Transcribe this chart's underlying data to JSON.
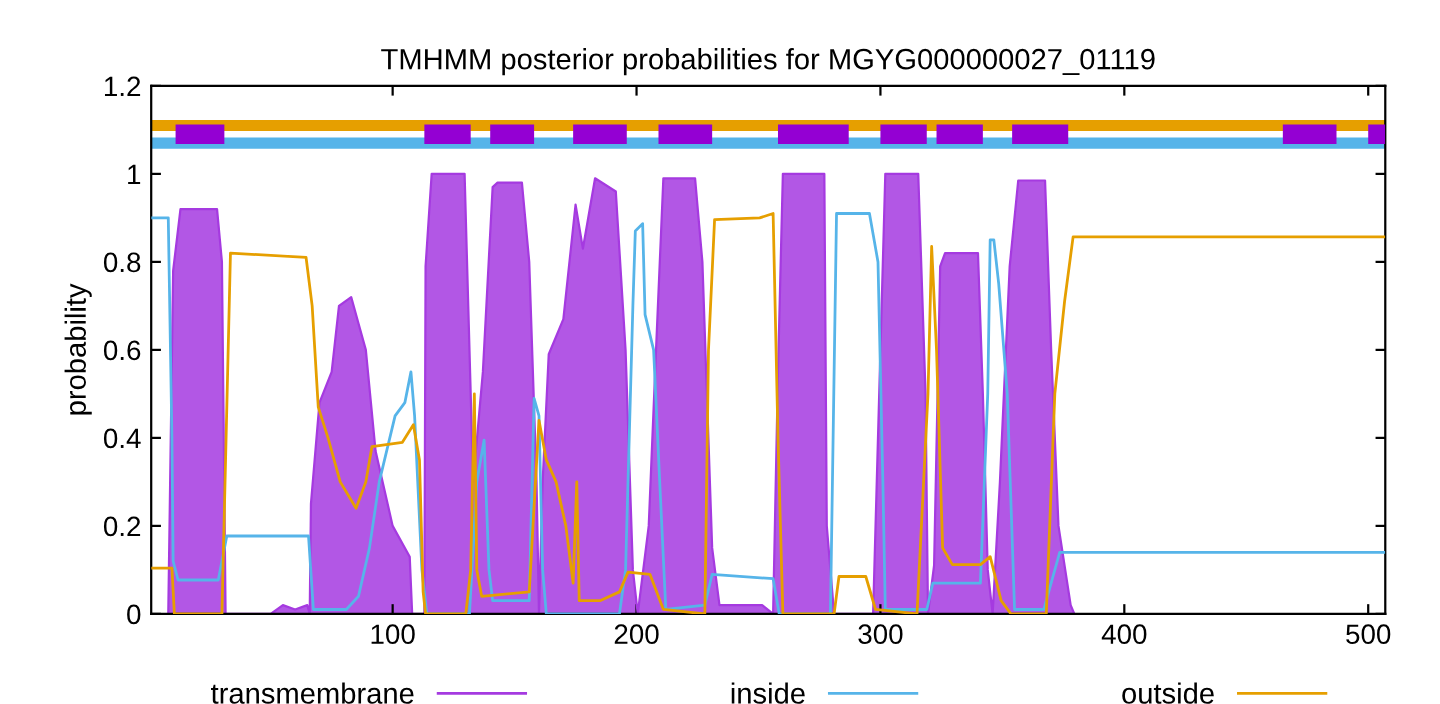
{
  "chart_data": {
    "type": "area",
    "title": "TMHMM posterior probabilities for MGYG000000027_01119",
    "ylabel": "probability",
    "xlim": [
      1,
      507
    ],
    "xticks": [
      100,
      200,
      300,
      400,
      500
    ],
    "ylim": [
      0,
      1.2
    ],
    "yticks": [
      0,
      0.2,
      0.4,
      0.6,
      0.8,
      1,
      1.2
    ],
    "grid": false,
    "legend": "bottom",
    "ref_lines": [
      {
        "axis": "y",
        "value": 1.11,
        "label": null,
        "color": "#e69f00"
      },
      {
        "axis": "y",
        "value": 1.07,
        "label": null,
        "color": "#56b4e9"
      }
    ],
    "series": [
      {
        "name": "transmembrane",
        "color": "#a53ae0",
        "x": [
          8,
          10,
          13,
          28,
          30,
          31.5,
          50,
          55,
          60,
          65,
          66,
          66.5,
          70,
          75,
          78,
          83,
          86,
          89,
          93,
          100,
          107,
          108,
          113,
          113.5,
          116,
          129.5,
          132,
          133,
          137,
          141,
          143,
          153,
          156,
          159,
          160,
          161.5,
          164,
          170,
          175,
          178,
          183,
          191.5,
          195.5,
          198.5,
          200.5,
          205,
          208,
          211,
          224,
          227,
          231,
          234,
          251.5,
          256,
          258,
          260,
          277,
          278,
          281,
          297,
          297.5,
          300,
          302,
          315.5,
          318.5,
          319.5,
          322,
          324.5,
          326.5,
          340,
          342,
          344,
          346,
          349,
          353,
          356.5,
          367.5,
          370,
          373,
          378,
          379.5
        ],
        "values": [
          0,
          0.78,
          0.92,
          0.92,
          0.8,
          0,
          0,
          0.02,
          0.01,
          0.02,
          0,
          0.25,
          0.48,
          0.55,
          0.7,
          0.72,
          0.66,
          0.6,
          0.37,
          0.2,
          0.13,
          0,
          0,
          0.79,
          1,
          1,
          0.5,
          0.3,
          0.55,
          0.97,
          0.98,
          0.98,
          0.8,
          0.3,
          0,
          0.3,
          0.59,
          0.67,
          0.93,
          0.83,
          0.99,
          0.96,
          0.6,
          0.1,
          0,
          0.2,
          0.6,
          0.99,
          0.99,
          0.8,
          0.15,
          0.02,
          0.02,
          0,
          0.55,
          1,
          1,
          0.2,
          0,
          0,
          0.1,
          0.6,
          1,
          1,
          0.5,
          0,
          0.11,
          0.79,
          0.82,
          0.82,
          0.5,
          0.1,
          0,
          0.3,
          0.79,
          0.985,
          0.985,
          0.6,
          0.2,
          0.02,
          0
        ]
      },
      {
        "name": "inside",
        "type": "line",
        "color": "#56b4e9",
        "x": [
          1,
          8,
          9.5,
          10,
          12,
          28.5,
          32,
          65.5,
          67.5,
          81,
          86,
          90.5,
          94.5,
          101,
          105,
          107.5,
          109,
          112,
          114,
          131.5,
          134.5,
          137.5,
          139.5,
          141,
          156,
          158,
          160,
          161.5,
          163,
          193,
          195.5,
          198.5,
          199.5,
          202.5,
          203.5,
          207,
          209.5,
          212,
          228,
          231,
          256,
          258.5,
          279.5,
          282,
          295.5,
          299,
          301,
          302,
          319,
          321.5,
          341,
          344,
          345,
          346.5,
          348.5,
          352,
          355,
          367,
          373.5,
          507
        ],
        "values": [
          0.9,
          0.9,
          0.4,
          0.12,
          0.077,
          0.077,
          0.177,
          0.177,
          0.01,
          0.01,
          0.04,
          0.15,
          0.3,
          0.45,
          0.48,
          0.55,
          0.45,
          0.1,
          0,
          0,
          0.3,
          0.395,
          0.1,
          0.03,
          0.03,
          0.49,
          0.45,
          0.1,
          0,
          0,
          0.1,
          0.7,
          0.87,
          0.887,
          0.68,
          0.6,
          0.3,
          0.01,
          0.02,
          0.09,
          0.08,
          0,
          0,
          0.91,
          0.91,
          0.8,
          0.3,
          0.01,
          0.01,
          0.07,
          0.07,
          0.5,
          0.85,
          0.85,
          0.75,
          0.5,
          0.01,
          0.01,
          0.14,
          0.14
        ]
      },
      {
        "name": "outside",
        "type": "line",
        "color": "#e69f00",
        "x": [
          1,
          9.5,
          10.5,
          30,
          33.5,
          64.5,
          67,
          69.5,
          73.5,
          78.5,
          85,
          89,
          91.5,
          104,
          108.5,
          111,
          112.5,
          113.5,
          130,
          132,
          133.5,
          134.5,
          136.5,
          156,
          160,
          163,
          167,
          171,
          174,
          175.5,
          176.5,
          185,
          193,
          196.5,
          205.5,
          211,
          228,
          229.5,
          232,
          250.5,
          256,
          258,
          260,
          281,
          283,
          294,
          298,
          315,
          319.5,
          321,
          323,
          325.5,
          329.5,
          341,
          345,
          349.5,
          353.5,
          368,
          371.5,
          375.5,
          379,
          507
        ],
        "values": [
          0.104,
          0.104,
          0,
          0,
          0.82,
          0.81,
          0.7,
          0.47,
          0.4,
          0.3,
          0.24,
          0.3,
          0.38,
          0.39,
          0.43,
          0.35,
          0.05,
          0,
          0,
          0.1,
          0.5,
          0.1,
          0.04,
          0.05,
          0.44,
          0.35,
          0.3,
          0.2,
          0.07,
          0.3,
          0.03,
          0.03,
          0.05,
          0.095,
          0.09,
          0.01,
          0,
          0.6,
          0.896,
          0.9,
          0.91,
          0.4,
          0,
          0,
          0.085,
          0.085,
          0.01,
          0,
          0.5,
          0.835,
          0.6,
          0.15,
          0.112,
          0.112,
          0.13,
          0.03,
          0,
          0,
          0.5,
          0.71,
          0.857,
          0.857
        ]
      },
      {
        "type": "line",
        "color": "#9400d3",
        "x": [
          11,
          31
        ],
        "values": [
          1.09,
          1.09
        ]
      },
      {
        "type": "line",
        "color": "#9400d3",
        "x": [
          113,
          132
        ],
        "values": [
          1.09,
          1.09
        ]
      },
      {
        "type": "line",
        "color": "#9400d3",
        "x": [
          140,
          158
        ],
        "values": [
          1.09,
          1.09
        ]
      },
      {
        "type": "line",
        "color": "#9400d3",
        "x": [
          174,
          196
        ],
        "values": [
          1.09,
          1.09
        ]
      },
      {
        "type": "line",
        "color": "#9400d3",
        "x": [
          209,
          231
        ],
        "values": [
          1.09,
          1.09
        ]
      },
      {
        "type": "line",
        "color": "#9400d3",
        "x": [
          258,
          287
        ],
        "values": [
          1.09,
          1.09
        ]
      },
      {
        "type": "line",
        "color": "#9400d3",
        "x": [
          300,
          319
        ],
        "values": [
          1.09,
          1.09
        ]
      },
      {
        "type": "line",
        "color": "#9400d3",
        "x": [
          323,
          342
        ],
        "values": [
          1.09,
          1.09
        ]
      },
      {
        "type": "line",
        "color": "#9400d3",
        "x": [
          354,
          377
        ],
        "values": [
          1.09,
          1.09
        ]
      },
      {
        "type": "line",
        "color": "#9400d3",
        "x": [
          465,
          487
        ],
        "values": [
          1.09,
          1.09
        ]
      },
      {
        "type": "line",
        "color": "#9400d3",
        "x": [
          500,
          507
        ],
        "values": [
          1.09,
          1.09
        ]
      }
    ]
  }
}
